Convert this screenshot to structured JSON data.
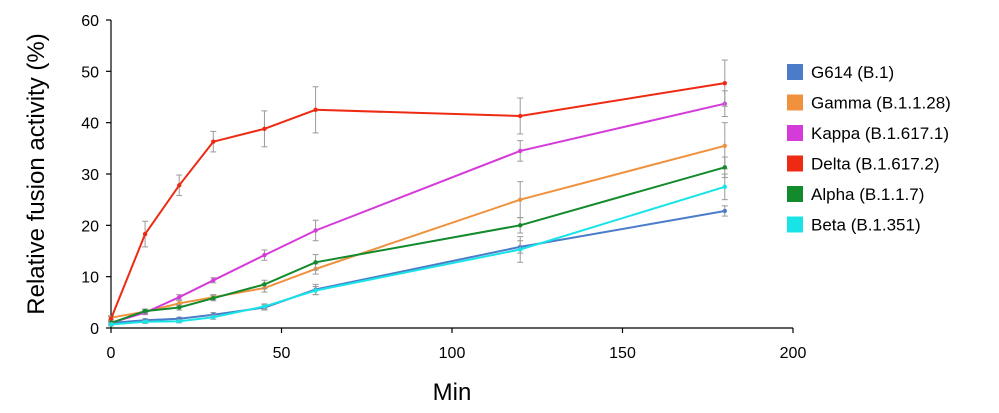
{
  "chart_data": {
    "type": "line",
    "title": "",
    "xlabel": "Min",
    "ylabel": "Relative fusion activity (%)",
    "xlim": [
      0,
      200
    ],
    "ylim": [
      0,
      60
    ],
    "xticks": [
      0,
      50,
      100,
      150,
      200
    ],
    "yticks": [
      0,
      10,
      20,
      30,
      40,
      50,
      60
    ],
    "grid": false,
    "legend_position": "right",
    "x": [
      0,
      10,
      20,
      30,
      45,
      60,
      120,
      180
    ],
    "series": [
      {
        "name": "G614 (B.1)",
        "color": "#4a7cc9",
        "values": [
          1.0,
          1.5,
          1.8,
          2.6,
          4.0,
          7.5,
          15.8,
          22.8
        ],
        "errors": [
          0.3,
          0.3,
          0.3,
          0.4,
          0.5,
          1.0,
          1.2,
          1.0
        ]
      },
      {
        "name": "Gamma (B.1.1.28)",
        "color": "#f0913e",
        "values": [
          2.0,
          3.2,
          4.8,
          6.0,
          7.8,
          11.5,
          25.0,
          35.5
        ],
        "errors": [
          0.4,
          0.4,
          0.5,
          0.5,
          0.8,
          1.0,
          3.5,
          4.5
        ]
      },
      {
        "name": "Kappa (B.1.617.1)",
        "color": "#d43bd9",
        "values": [
          1.0,
          3.0,
          6.0,
          9.3,
          14.2,
          19.0,
          34.5,
          43.7
        ],
        "errors": [
          0.3,
          0.4,
          0.5,
          0.5,
          1.0,
          2.0,
          2.0,
          2.5
        ]
      },
      {
        "name": "Delta (B.1.617.2)",
        "color": "#ee2a12",
        "values": [
          1.8,
          18.3,
          27.8,
          36.3,
          38.8,
          42.5,
          41.3,
          47.7
        ],
        "errors": [
          0.4,
          2.5,
          2.0,
          2.0,
          3.5,
          4.5,
          3.5,
          4.5
        ]
      },
      {
        "name": "Alpha (B.1.1.7)",
        "color": "#138a2c",
        "values": [
          1.0,
          3.3,
          4.0,
          5.8,
          8.5,
          12.8,
          20.0,
          31.3
        ],
        "errors": [
          0.3,
          0.4,
          0.5,
          0.5,
          0.8,
          1.5,
          1.5,
          2.0
        ]
      },
      {
        "name": "Beta (B.1.351)",
        "color": "#18e4e8",
        "values": [
          0.7,
          1.2,
          1.3,
          2.1,
          4.2,
          7.3,
          15.3,
          27.5
        ],
        "errors": [
          0.3,
          0.3,
          0.3,
          0.4,
          0.5,
          0.8,
          2.5,
          2.5
        ]
      }
    ]
  }
}
